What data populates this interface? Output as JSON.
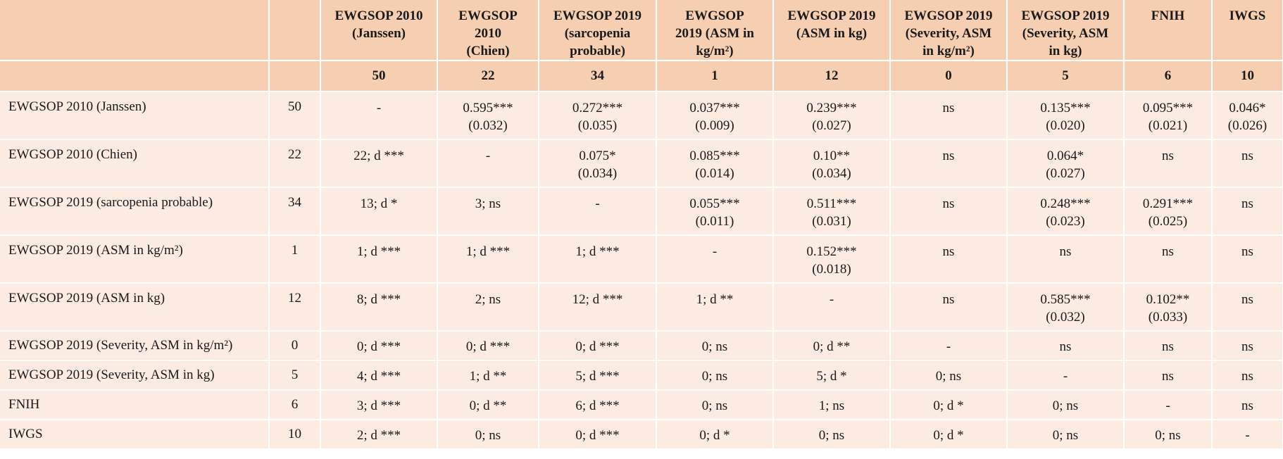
{
  "columns": [
    {
      "label_lines": [
        "EWGSOP 2010",
        "(Janssen)"
      ],
      "count": "50"
    },
    {
      "label_lines": [
        "EWGSOP",
        "2010",
        "(Chien)"
      ],
      "count": "22"
    },
    {
      "label_lines": [
        "EWGSOP 2019",
        "(sarcopenia",
        "probable)"
      ],
      "count": "34"
    },
    {
      "label_lines": [
        "EWGSOP",
        "2019 (ASM in",
        "kg/m²)"
      ],
      "count": "1"
    },
    {
      "label_lines": [
        "EWGSOP 2019",
        "(ASM in kg)"
      ],
      "count": "12"
    },
    {
      "label_lines": [
        "EWGSOP 2019",
        "(Severity, ASM",
        "in kg/m²)"
      ],
      "count": "0"
    },
    {
      "label_lines": [
        "EWGSOP 2019",
        "(Severity, ASM",
        "in kg)"
      ],
      "count": "5"
    },
    {
      "label_lines": [
        "FNIH"
      ],
      "count": "6"
    },
    {
      "label_lines": [
        "IWGS"
      ],
      "count": "10"
    }
  ],
  "rows": [
    {
      "label": "EWGSOP 2010 (Janssen)",
      "count": "50",
      "height": "tall",
      "cells": [
        [
          "-"
        ],
        [
          "0.595***",
          "(0.032)"
        ],
        [
          "0.272***",
          "(0.035)"
        ],
        [
          "0.037***",
          "(0.009)"
        ],
        [
          "0.239***",
          "(0.027)"
        ],
        [
          "ns"
        ],
        [
          "0.135***",
          "(0.020)"
        ],
        [
          "0.095***",
          "(0.021)"
        ],
        [
          "0.046*",
          "(0.026)"
        ]
      ]
    },
    {
      "label": "EWGSOP 2010 (Chien)",
      "count": "22",
      "height": "tall",
      "cells": [
        [
          "22; d ***"
        ],
        [
          "-"
        ],
        [
          "0.075*",
          "(0.034)"
        ],
        [
          "0.085***",
          "(0.014)"
        ],
        [
          "0.10**",
          "(0.034)"
        ],
        [
          "ns"
        ],
        [
          "0.064*",
          "(0.027)"
        ],
        [
          "ns"
        ],
        [
          "ns"
        ]
      ]
    },
    {
      "label": "EWGSOP 2019 (sarcopenia probable)",
      "count": "34",
      "height": "tall",
      "cells": [
        [
          "13; d *"
        ],
        [
          "3; ns"
        ],
        [
          "-"
        ],
        [
          "0.055***",
          "(0.011)"
        ],
        [
          "0.511***",
          "(0.031)"
        ],
        [
          "ns"
        ],
        [
          "0.248***",
          "(0.023)"
        ],
        [
          "0.291***",
          "(0.025)"
        ],
        [
          "ns"
        ]
      ]
    },
    {
      "label": "EWGSOP 2019 (ASM in kg/m²)",
      "count": "1",
      "height": "tall",
      "cells": [
        [
          "1; d ***"
        ],
        [
          "1; d ***"
        ],
        [
          "1; d ***"
        ],
        [
          "-"
        ],
        [
          "0.152***",
          "(0.018)"
        ],
        [
          "ns"
        ],
        [
          "ns"
        ],
        [
          "ns"
        ],
        [
          "ns"
        ]
      ]
    },
    {
      "label": "EWGSOP 2019 (ASM in kg)",
      "count": "12",
      "height": "tall",
      "cells": [
        [
          "8; d ***"
        ],
        [
          "2; ns"
        ],
        [
          "12; d ***"
        ],
        [
          "1; d **"
        ],
        [
          "-"
        ],
        [
          "ns"
        ],
        [
          "0.585***",
          "(0.032)"
        ],
        [
          "0.102**",
          "(0.033)"
        ],
        [
          "ns"
        ]
      ]
    },
    {
      "label": "EWGSOP 2019 (Severity, ASM in kg/m²)",
      "count": "0",
      "height": "short",
      "cells": [
        [
          "0; d ***"
        ],
        [
          "0; d ***"
        ],
        [
          "0; d ***"
        ],
        [
          "0; ns"
        ],
        [
          "0; d **"
        ],
        [
          "-"
        ],
        [
          "ns"
        ],
        [
          "ns"
        ],
        [
          "ns"
        ]
      ]
    },
    {
      "label": "EWGSOP 2019 (Severity, ASM in kg)",
      "count": "5",
      "height": "short",
      "cells": [
        [
          "4; d ***"
        ],
        [
          "1; d **"
        ],
        [
          "5; d ***"
        ],
        [
          "0; ns"
        ],
        [
          "5; d *"
        ],
        [
          "0; ns"
        ],
        [
          "-"
        ],
        [
          "ns"
        ],
        [
          "ns"
        ]
      ]
    },
    {
      "label": "FNIH",
      "count": "6",
      "height": "short",
      "cells": [
        [
          "3; d ***"
        ],
        [
          "0; d **"
        ],
        [
          "6; d ***"
        ],
        [
          "0; ns"
        ],
        [
          "1; ns"
        ],
        [
          "0; d *"
        ],
        [
          "0; ns"
        ],
        [
          "-"
        ],
        [
          "ns"
        ]
      ]
    },
    {
      "label": "IWGS",
      "count": "10",
      "height": "short",
      "cells": [
        [
          "2; d ***"
        ],
        [
          "0; ns"
        ],
        [
          "0; d ***"
        ],
        [
          "0; d *"
        ],
        [
          "0; ns"
        ],
        [
          "0; d *"
        ],
        [
          "0; ns"
        ],
        [
          "0; ns"
        ],
        [
          "-"
        ]
      ]
    }
  ]
}
